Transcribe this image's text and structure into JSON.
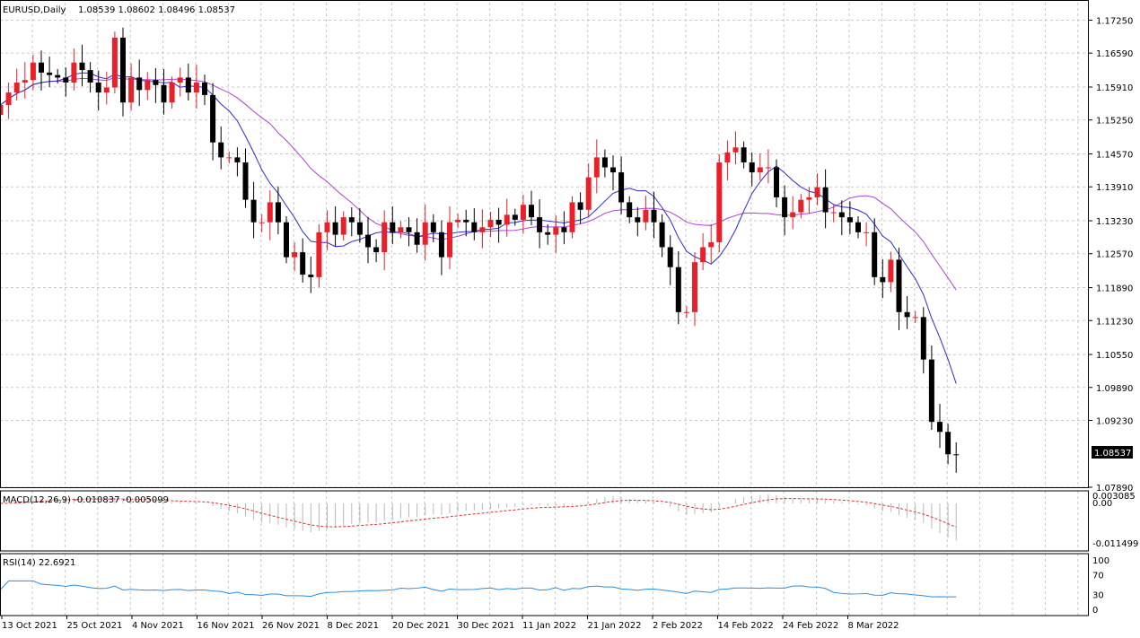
{
  "header": {
    "title": "EURUSD,Daily",
    "ohlc": "1.08539 1.08602 1.08496 1.08537"
  },
  "price_axis": {
    "ticks": [
      "1.17250",
      "1.16590",
      "1.15910",
      "1.15250",
      "1.14570",
      "1.13910",
      "1.13230",
      "1.12570",
      "1.11890",
      "1.11230",
      "1.10550",
      "1.09890",
      "1.09230",
      "1.07890"
    ],
    "current_price": "1.08537"
  },
  "macd": {
    "label": "MACD(12,26,9) -0.010837 -0.005099",
    "ticks": [
      "0.003085",
      "0.00",
      "-0.011499"
    ]
  },
  "rsi": {
    "label": "RSI(14) 22.6921",
    "ticks": [
      "100",
      "70",
      "30",
      "0"
    ]
  },
  "time_axis": {
    "labels": [
      "13 Oct 2021",
      "25 Oct 2021",
      "4 Nov 2021",
      "16 Nov 2021",
      "26 Nov 2021",
      "8 Dec 2021",
      "20 Dec 2021",
      "30 Dec 2021",
      "11 Jan 2022",
      "21 Jan 2022",
      "2 Feb 2022",
      "14 Feb 2022",
      "24 Feb 2022",
      "8 Mar 2022"
    ]
  },
  "colors": {
    "bull": "#e8202a",
    "bear": "#000000",
    "ma_fast": "#2b2bd6",
    "ma_slow": "#b040d8",
    "macd_signal": "#e03030",
    "macd_hist": "#b8b8b8",
    "rsi": "#2a8ee0",
    "grid": "#c8c8c8"
  },
  "chart_data": {
    "type": "candlestick",
    "symbol": "EURUSD",
    "timeframe": "Daily",
    "ylim": [
      1.0789,
      1.176
    ],
    "candle_closes": [
      1.1555,
      1.158,
      1.16,
      1.1605,
      1.164,
      1.162,
      1.1615,
      1.161,
      1.16,
      1.164,
      1.1625,
      1.16,
      1.158,
      1.159,
      1.169,
      1.156,
      1.161,
      1.1585,
      1.1605,
      1.1595,
      1.156,
      1.16,
      1.161,
      1.158,
      1.16,
      1.1575,
      1.148,
      1.145,
      1.145,
      1.144,
      1.1365,
      1.132,
      1.132,
      1.136,
      1.132,
      1.125,
      1.126,
      1.1215,
      1.121,
      1.13,
      1.132,
      1.1295,
      1.133,
      1.132,
      1.1295,
      1.127,
      1.126,
      1.132,
      1.13,
      1.131,
      1.13,
      1.1275,
      1.132,
      1.13,
      1.125,
      1.132,
      1.1325,
      1.132,
      1.13,
      1.131,
      1.1325,
      1.1315,
      1.1335,
      1.1325,
      1.1355,
      1.133,
      1.13,
      1.1295,
      1.131,
      1.13,
      1.136,
      1.1345,
      1.141,
      1.145,
      1.143,
      1.142,
      1.136,
      1.133,
      1.132,
      1.1345,
      1.132,
      1.127,
      1.123,
      1.114,
      1.114,
      1.124,
      1.127,
      1.128,
      1.144,
      1.146,
      1.147,
      1.144,
      1.142,
      1.143,
      1.143,
      1.137,
      1.133,
      1.134,
      1.1365,
      1.137,
      1.139,
      1.134,
      1.134,
      1.133,
      1.132,
      1.13,
      1.13,
      1.121,
      1.12,
      1.1245,
      1.114,
      1.113,
      1.113,
      1.1045,
      1.092,
      1.09,
      1.0855,
      1.0854
    ]
  }
}
